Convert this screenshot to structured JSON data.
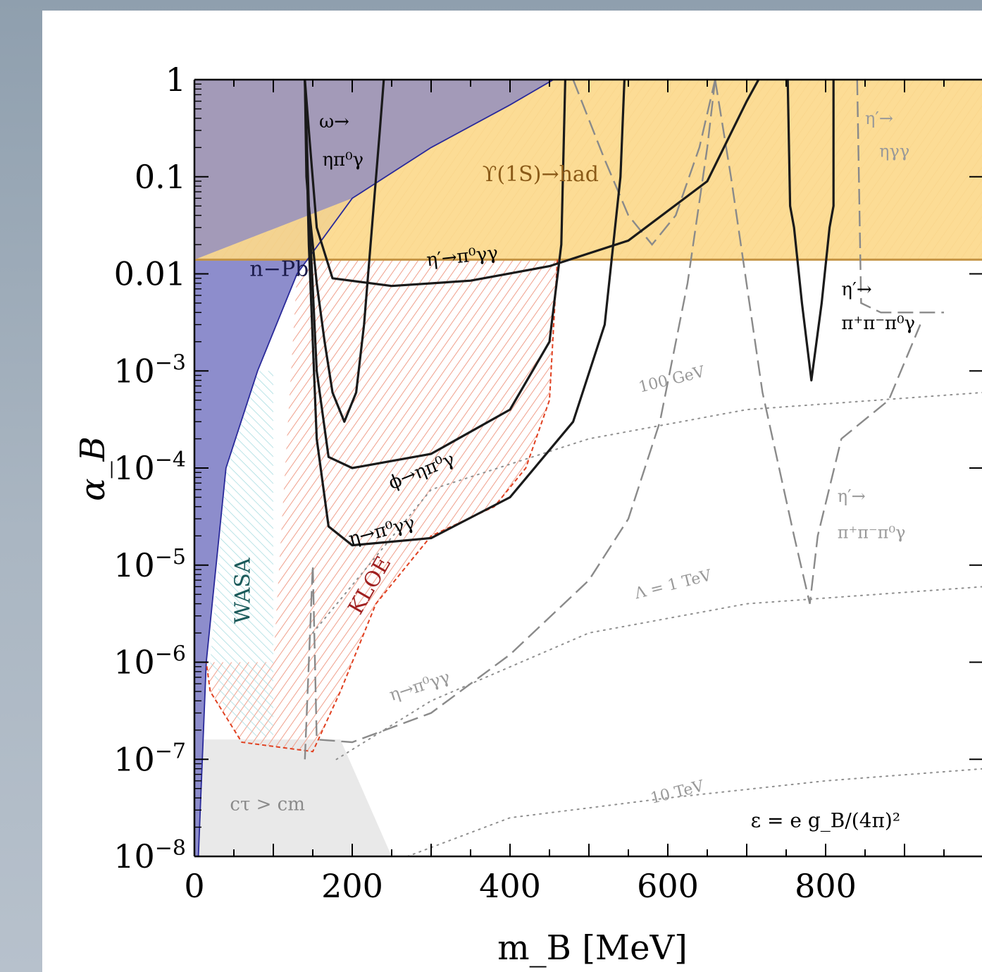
{
  "chart_data": {
    "type": "line",
    "xlabel": "m_B [MeV]",
    "ylabel": "α_B",
    "xlim": [
      0,
      1000
    ],
    "ylim": [
      1e-08,
      1
    ],
    "yscale": "log",
    "x_tick_labels": [
      {
        "v": 0,
        "t": "0"
      },
      {
        "v": 200,
        "t": "200"
      },
      {
        "v": 400,
        "t": "400"
      },
      {
        "v": 600,
        "t": "600"
      },
      {
        "v": 800,
        "t": "800"
      }
    ],
    "y_tick_labels": [
      {
        "v": 1,
        "t": "1",
        "sup": ""
      },
      {
        "v": 0.1,
        "t": "0.1",
        "sup": ""
      },
      {
        "v": 0.01,
        "t": "0.01",
        "sup": ""
      },
      {
        "v": 0.001,
        "t": "10",
        "sup": "−3"
      },
      {
        "v": 0.0001,
        "t": "10",
        "sup": "−4"
      },
      {
        "v": 1e-05,
        "t": "10",
        "sup": "−5"
      },
      {
        "v": 1e-06,
        "t": "10",
        "sup": "−6"
      },
      {
        "v": 1e-07,
        "t": "10",
        "sup": "−7"
      },
      {
        "v": 1e-08,
        "t": "10",
        "sup": "−8"
      }
    ],
    "colors": {
      "npb_fill": "#8d8dcc",
      "upsilon_fill": "#fcd98c",
      "upsilon_edge": "#c49444",
      "kloe_hatch": "#f0a08c",
      "kloe_edge": "#e04020",
      "wasa_hatch": "#9ed8dd",
      "ctau_fill": "#e9e9e9",
      "solid_bound": "#1a1a1a",
      "dashed_bound": "#8a8a8a",
      "dotted_contour": "#8f8f8f"
    },
    "regions": [
      {
        "name": "n−Pb",
        "boundary": [
          [
            5,
            1e-08
          ],
          [
            15,
            1e-06
          ],
          [
            40,
            0.0001
          ],
          [
            80,
            0.001
          ],
          [
            130,
            0.01
          ],
          [
            200,
            0.06
          ],
          [
            300,
            0.2
          ],
          [
            400,
            0.55
          ],
          [
            455,
            1
          ]
        ]
      },
      {
        "name": "ϒ(1S)→had",
        "alpha_min": 0.014,
        "alpha_max": 1
      },
      {
        "name": "KLOE",
        "boundary": [
          [
            140,
            0.014
          ],
          [
            460,
            0.014
          ],
          [
            450,
            0.0005
          ],
          [
            420,
            0.0001
          ],
          [
            380,
            4e-05
          ],
          [
            300,
            2e-05
          ],
          [
            230,
            4e-06
          ],
          [
            185,
            5e-07
          ],
          [
            150,
            1.2e-07
          ],
          [
            60,
            1.5e-07
          ],
          [
            20,
            5e-07
          ],
          [
            15,
            1e-06
          ],
          [
            100,
            1e-06
          ],
          [
            130,
            0.01
          ]
        ]
      },
      {
        "name": "WASA",
        "boundary": [
          [
            20,
            1e-06
          ],
          [
            40,
            3e-07
          ],
          [
            80,
            1.7e-07
          ],
          [
            100,
            1.7e-07
          ],
          [
            100,
            0.001
          ],
          [
            80,
            0.001
          ],
          [
            40,
            0.0001
          ],
          [
            20,
            1e-06
          ]
        ]
      },
      {
        "name": "cτ > cm",
        "boundary": [
          [
            0,
            1e-08
          ],
          [
            250,
            1e-08
          ],
          [
            185,
            1.6e-07
          ],
          [
            0,
            1.6e-07
          ]
        ]
      }
    ],
    "solid_bounds": [
      {
        "name": "ω→ηπ⁰γ",
        "points": [
          [
            140,
            1
          ],
          [
            142,
            0.1
          ],
          [
            145,
            0.05
          ],
          [
            155,
            0.008
          ],
          [
            165,
            0.002
          ],
          [
            175,
            0.0006
          ],
          [
            190,
            0.0003
          ],
          [
            205,
            0.0006
          ],
          [
            215,
            0.003
          ],
          [
            225,
            0.03
          ],
          [
            235,
            0.3
          ],
          [
            240,
            1
          ]
        ]
      },
      {
        "name": "η′→π⁰γγ",
        "points": [
          [
            140,
            1
          ],
          [
            145,
            0.3
          ],
          [
            155,
            0.03
          ],
          [
            175,
            0.009
          ],
          [
            250,
            0.0075
          ],
          [
            350,
            0.0085
          ],
          [
            450,
            0.012
          ],
          [
            550,
            0.022
          ],
          [
            650,
            0.09
          ],
          [
            700,
            0.6
          ],
          [
            715,
            1
          ]
        ]
      },
      {
        "name": "ϕ→ηπ⁰γ",
        "points": [
          [
            140,
            1
          ],
          [
            145,
            0.05
          ],
          [
            155,
            0.001
          ],
          [
            170,
            0.00013
          ],
          [
            200,
            0.0001
          ],
          [
            300,
            0.00014
          ],
          [
            400,
            0.0004
          ],
          [
            450,
            0.002
          ],
          [
            465,
            0.02
          ],
          [
            470,
            1
          ]
        ]
      },
      {
        "name": "η→π⁰γγ",
        "points": [
          [
            140,
            1
          ],
          [
            145,
            0.02
          ],
          [
            155,
            0.0002
          ],
          [
            170,
            2.5e-05
          ],
          [
            200,
            1.6e-05
          ],
          [
            300,
            1.9e-05
          ],
          [
            400,
            5e-05
          ],
          [
            480,
            0.0003
          ],
          [
            520,
            0.003
          ],
          [
            540,
            0.1
          ],
          [
            545,
            1
          ]
        ]
      },
      {
        "name": "η′→π⁺π⁻π⁰γ",
        "points": [
          [
            752,
            1
          ],
          [
            755,
            0.05
          ],
          [
            760,
            0.03
          ],
          [
            770,
            0.005
          ],
          [
            782,
            0.0008
          ],
          [
            795,
            0.005
          ],
          [
            805,
            0.03
          ],
          [
            810,
            0.05
          ],
          [
            810,
            1
          ]
        ]
      }
    ],
    "dashed_bounds": [
      {
        "name": "η→π⁰γγ",
        "points": [
          [
            140,
            1e-07
          ],
          [
            150,
            1e-05
          ],
          [
            155,
            1.6e-07
          ],
          [
            200,
            1.5e-07
          ],
          [
            300,
            3e-07
          ],
          [
            400,
            1.2e-06
          ],
          [
            500,
            7e-06
          ],
          [
            550,
            3e-05
          ],
          [
            590,
            0.0003
          ],
          [
            625,
            0.008
          ],
          [
            650,
            0.2
          ],
          [
            660,
            1
          ]
        ]
      },
      {
        "name": "η′→π⁺π⁻π⁰γ",
        "points": [
          [
            660,
            1
          ],
          [
            680,
            0.1
          ],
          [
            720,
            0.0006
          ],
          [
            760,
            2e-05
          ],
          [
            780,
            4e-06
          ],
          [
            790,
            2e-05
          ],
          [
            820,
            0.0002
          ],
          [
            880,
            0.0005
          ],
          [
            920,
            0.003
          ]
        ]
      },
      {
        "name": "η′→ηγγ",
        "points": [
          [
            480,
            1
          ],
          [
            520,
            0.15
          ],
          [
            550,
            0.04
          ],
          [
            580,
            0.02
          ],
          [
            610,
            0.04
          ],
          [
            640,
            0.2
          ],
          [
            660,
            1
          ]
        ]
      },
      {
        "name": "",
        "points": [
          [
            840,
            1
          ],
          [
            845,
            0.005
          ],
          [
            870,
            0.004
          ],
          [
            950,
            0.004
          ]
        ]
      }
    ],
    "dotted_contours": [
      {
        "name": "10 TeV",
        "points": [
          [
            270,
            1e-08
          ],
          [
            400,
            2.5e-08
          ],
          [
            600,
            4e-08
          ],
          [
            800,
            6e-08
          ],
          [
            1000,
            8e-08
          ]
        ]
      },
      {
        "name": "Λ = 1 TeV",
        "points": [
          [
            180,
            1e-07
          ],
          [
            300,
            4e-07
          ],
          [
            500,
            2e-06
          ],
          [
            700,
            4e-06
          ],
          [
            1000,
            6e-06
          ]
        ]
      },
      {
        "name": "100 GeV",
        "points": [
          [
            150,
            2e-06
          ],
          [
            300,
            6e-05
          ],
          [
            500,
            0.0002
          ],
          [
            700,
            0.0004
          ],
          [
            1000,
            0.0006
          ]
        ]
      }
    ],
    "annotations": [
      {
        "name": "n-Pb",
        "text": "n−Pb",
        "x": 70,
        "y": 0.0095,
        "color": "#1a1a4a",
        "size": 30,
        "rot": 0,
        "bold": false
      },
      {
        "name": "upsilon",
        "text": "ϒ(1S)→had",
        "x": 365,
        "y": 0.09,
        "color": "#8a5a18",
        "size": 30,
        "rot": 0,
        "bold": false
      },
      {
        "name": "omega-top",
        "text": "ω→",
        "x": 158,
        "y": 0.32,
        "color": "#000",
        "size": 26,
        "rot": 0,
        "bold": false
      },
      {
        "name": "omega-bottom",
        "text": "ηπ⁰γ",
        "x": 162,
        "y": 0.13,
        "color": "#000",
        "size": 26,
        "rot": 0,
        "bold": false
      },
      {
        "name": "etaprime-pi0gg",
        "text": "η′→π⁰γγ",
        "x": 295,
        "y": 0.012,
        "color": "#000",
        "size": 26,
        "rot": -6,
        "bold": false
      },
      {
        "name": "etaprime-3pi-top",
        "text": "η′→",
        "x": 820,
        "y": 0.006,
        "color": "#000",
        "size": 26,
        "rot": 0,
        "bold": false
      },
      {
        "name": "etaprime-3pi-bottom",
        "text": "π⁺π⁻π⁰γ",
        "x": 820,
        "y": 0.0027,
        "color": "#000",
        "size": 26,
        "rot": 0,
        "bold": false
      },
      {
        "name": "etaprime-ngg-top",
        "text": "η′→",
        "x": 850,
        "y": 0.35,
        "color": "#999",
        "size": 24,
        "rot": 0,
        "bold": false
      },
      {
        "name": "etaprime-ngg-bottom",
        "text": "ηγγ",
        "x": 868,
        "y": 0.16,
        "color": "#999",
        "size": 24,
        "rot": 0,
        "bold": false
      },
      {
        "name": "phi",
        "text": "ϕ→ηπ⁰γ",
        "x": 250,
        "y": 6e-05,
        "color": "#000",
        "size": 26,
        "rot": -22,
        "bold": false
      },
      {
        "name": "eta-pi0gg",
        "text": "η→π⁰γγ",
        "x": 198,
        "y": 1.6e-05,
        "color": "#000",
        "size": 26,
        "rot": -15,
        "bold": false
      },
      {
        "name": "etaprime-3pi-gray-top",
        "text": "η′→",
        "x": 815,
        "y": 4.5e-05,
        "color": "#999",
        "size": 24,
        "rot": 0,
        "bold": false
      },
      {
        "name": "etaprime-3pi-gray-bottom",
        "text": "π⁺π⁻π⁰γ",
        "x": 815,
        "y": 1.9e-05,
        "color": "#999",
        "size": 24,
        "rot": 0,
        "bold": false
      },
      {
        "name": "100gev",
        "text": "100 GeV",
        "x": 565,
        "y": 0.0006,
        "color": "#999",
        "size": 22,
        "rot": -14,
        "bold": false
      },
      {
        "name": "1tev",
        "text": "Λ = 1 TeV",
        "x": 560,
        "y": 4.5e-06,
        "color": "#999",
        "size": 22,
        "rot": -14,
        "bold": false
      },
      {
        "name": "10tev",
        "text": "10 TeV",
        "x": 580,
        "y": 3.5e-08,
        "color": "#999",
        "size": 22,
        "rot": -14,
        "bold": false
      },
      {
        "name": "wasa",
        "text": "WASA",
        "x": 70,
        "y": 2.5e-06,
        "color": "#1a5a5a",
        "size": 30,
        "rot": -90,
        "bold": false
      },
      {
        "name": "kloe",
        "text": "KLOE",
        "x": 210,
        "y": 3e-06,
        "color": "#a02020",
        "size": 30,
        "rot": -60,
        "bold": false
      },
      {
        "name": "eta-pi0gg-gray",
        "text": "η→π⁰γγ",
        "x": 250,
        "y": 4e-07,
        "color": "#999",
        "size": 24,
        "rot": -18,
        "bold": false
      },
      {
        "name": "ctau",
        "text": "cτ > cm",
        "x": 45,
        "y": 3e-08,
        "color": "#8a8a8a",
        "size": 26,
        "rot": 0,
        "bold": false
      },
      {
        "name": "epsilon",
        "text": "ε = e g_B/(4π)²",
        "x": 705,
        "y": 2e-08,
        "color": "#000",
        "size": 28,
        "rot": 0,
        "bold": false
      }
    ]
  }
}
